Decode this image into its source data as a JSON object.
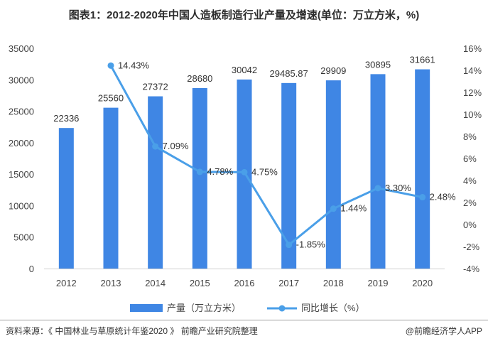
{
  "title": "图表1：2012-2020年中国人造板制造行业产量及增速(单位：万立方米，%)",
  "source": "资料来源：《 中国林业与草原统计年鉴2020 》 前瞻产业研究院整理",
  "brand": "@前瞻经济学人APP",
  "colors": {
    "bar": "#3f86e4",
    "line": "#4a9fe8",
    "axis_text": "#444444"
  },
  "chart_data": {
    "type": "bar",
    "categories": [
      "2012",
      "2013",
      "2014",
      "2015",
      "2016",
      "2017",
      "2018",
      "2019",
      "2020"
    ],
    "series": [
      {
        "name": "产量（万立方米）",
        "type": "bar",
        "axis": "left",
        "values": [
          22336,
          25560,
          27372,
          28680,
          30042,
          29485.87,
          29909,
          30895,
          31661
        ],
        "labels": [
          "22336",
          "25560",
          "27372",
          "28680",
          "30042",
          "29485.87",
          "29909",
          "30895",
          "31661"
        ]
      },
      {
        "name": "同比增长（%）",
        "type": "line",
        "axis": "right",
        "values": [
          null,
          14.43,
          7.09,
          4.78,
          4.75,
          -1.85,
          1.44,
          3.3,
          2.48
        ],
        "labels": [
          "",
          "14.43%",
          "7.09%",
          "4.78%",
          "4.75%",
          "-1.85%",
          "1.44%",
          "3.30%",
          "2.48%"
        ]
      }
    ],
    "ylim_left": [
      0,
      35000
    ],
    "yticks_left": [
      "0",
      "5000",
      "10000",
      "15000",
      "20000",
      "25000",
      "30000",
      "35000"
    ],
    "ylim_right": [
      -4,
      16
    ],
    "yticks_right": [
      "-4%",
      "-2%",
      "0%",
      "2%",
      "4%",
      "6%",
      "8%",
      "10%",
      "12%",
      "14%",
      "16%"
    ],
    "grid": false,
    "legend_position": "bottom"
  }
}
